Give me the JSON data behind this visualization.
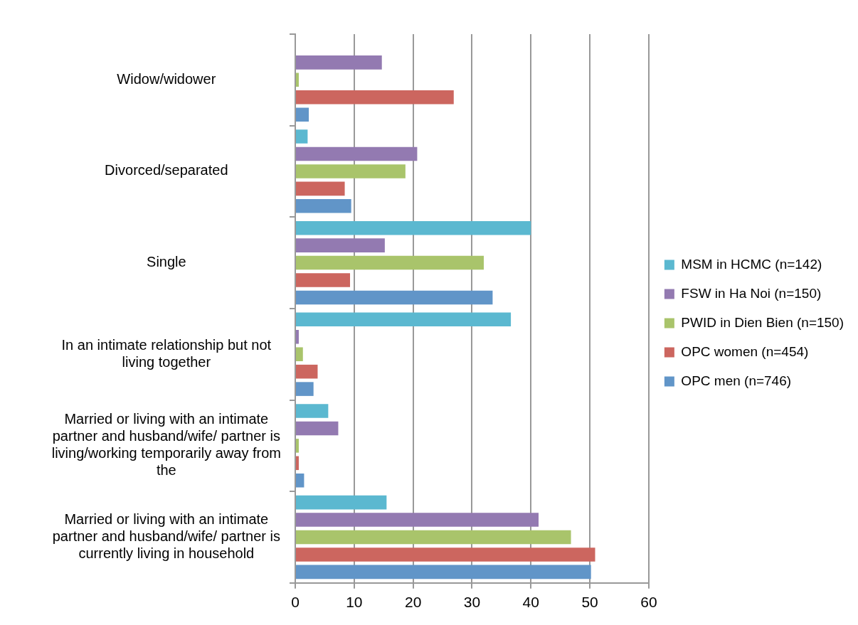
{
  "chart_data": {
    "type": "bar",
    "orientation": "horizontal",
    "categories": [
      "Widow/widower",
      "Divorced/separated",
      "Single",
      "In an intimate relationship but not living together",
      "Married or living with an intimate partner and husband/wife/ partner is living/working temporarily away from the",
      "Married or living with an intimate partner and husband/wife/ partner is currently living in household"
    ],
    "series": [
      {
        "name": "MSM in HCMC (n=142)",
        "color": "#5bb8d0",
        "values": [
          0,
          2.1,
          40.0,
          36.6,
          5.6,
          15.5
        ]
      },
      {
        "name": "FSW in Ha Noi (n=150)",
        "color": "#937ab1",
        "values": [
          14.7,
          20.7,
          15.2,
          0.6,
          7.3,
          41.3
        ]
      },
      {
        "name": "PWID in Dien Bien (n=150)",
        "color": "#a9c46b",
        "values": [
          0.6,
          18.7,
          32.0,
          1.3,
          0.6,
          46.8
        ]
      },
      {
        "name": "OPC women (n=454)",
        "color": "#cc665f",
        "values": [
          26.9,
          8.4,
          9.3,
          3.8,
          0.6,
          50.9
        ]
      },
      {
        "name": "OPC men (n=746)",
        "color": "#6195c8",
        "values": [
          2.3,
          9.5,
          33.5,
          3.1,
          1.5,
          50.2
        ]
      }
    ],
    "xlim": [
      0,
      60
    ],
    "xticks": [
      0,
      10,
      20,
      30,
      40,
      50,
      60
    ],
    "grid": "x",
    "legend": "right"
  }
}
